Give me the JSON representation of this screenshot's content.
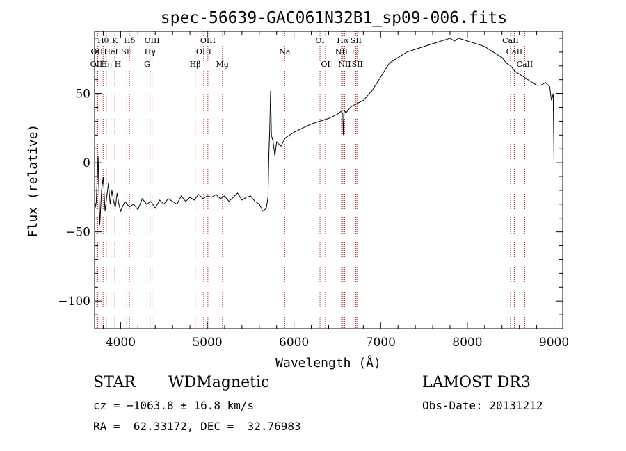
{
  "chart_data": {
    "type": "line",
    "title": "spec-56639-GAC061N32B1_sp09-006.fits",
    "xlabel": "Wavelength (Å)",
    "ylabel": "Flux (relative)",
    "xlim": [
      3700,
      9100
    ],
    "ylim": [
      -120,
      95
    ],
    "xticks": [
      4000,
      5000,
      6000,
      7000,
      8000,
      9000
    ],
    "xtick_labels": [
      "4000",
      "5000",
      "6000",
      "7000",
      "8000",
      "9000"
    ],
    "yticks": [
      -100,
      -50,
      0,
      50
    ],
    "ytick_labels": [
      "−100",
      "−50",
      "0",
      "50"
    ],
    "grid": false,
    "series": [
      {
        "name": "flux",
        "x": [
          3700,
          3720,
          3740,
          3760,
          3780,
          3800,
          3820,
          3840,
          3860,
          3880,
          3900,
          3920,
          3940,
          3960,
          3980,
          4000,
          4050,
          4100,
          4150,
          4200,
          4250,
          4300,
          4350,
          4400,
          4450,
          4500,
          4550,
          4600,
          4650,
          4700,
          4750,
          4800,
          4850,
          4900,
          4950,
          5000,
          5050,
          5100,
          5150,
          5200,
          5250,
          5300,
          5350,
          5400,
          5450,
          5500,
          5550,
          5600,
          5640,
          5680,
          5700,
          5710,
          5720,
          5730,
          5740,
          5760,
          5780,
          5800,
          5850,
          5900,
          6000,
          6100,
          6200,
          6300,
          6400,
          6500,
          6540,
          6563,
          6570,
          6580,
          6600,
          6650,
          6700,
          6800,
          6900,
          7000,
          7100,
          7200,
          7300,
          7400,
          7500,
          7600,
          7700,
          7800,
          7850,
          7900,
          8000,
          8100,
          8200,
          8300,
          8400,
          8450,
          8500,
          8550,
          8600,
          8650,
          8700,
          8750,
          8800,
          8850,
          8900,
          8950,
          8970,
          8990,
          9000
        ],
        "y": [
          -35,
          -28,
          5,
          -45,
          -20,
          -10,
          -35,
          -25,
          -15,
          -30,
          -20,
          -28,
          -32,
          -22,
          -30,
          -35,
          -28,
          -32,
          -30,
          -34,
          -26,
          -30,
          -28,
          -33,
          -27,
          -30,
          -26,
          -28,
          -30,
          -24,
          -28,
          -25,
          -27,
          -23,
          -26,
          -24,
          -25,
          -23,
          -26,
          -24,
          -28,
          -25,
          -22,
          -27,
          -25,
          -24,
          -28,
          -30,
          -35,
          -33,
          -25,
          5,
          25,
          52,
          20,
          15,
          5,
          15,
          12,
          18,
          22,
          25,
          28,
          30,
          32,
          35,
          37,
          36,
          20,
          38,
          36,
          40,
          42,
          45,
          52,
          62,
          72,
          76,
          80,
          82,
          84,
          86,
          88,
          90,
          88,
          90,
          88,
          86,
          84,
          80,
          76,
          72,
          70,
          66,
          64,
          62,
          60,
          58,
          56,
          56,
          58,
          55,
          45,
          50,
          0
        ]
      }
    ],
    "line_markers": [
      {
        "label": "Hθ",
        "wavelength": 3798,
        "tier": 1
      },
      {
        "label": "OII",
        "wavelength": 3727,
        "tier": 2
      },
      {
        "label": "OIII",
        "wavelength": 3737,
        "tier": 3
      },
      {
        "label": "Hη",
        "wavelength": 3835,
        "tier": 3
      },
      {
        "label": "HeI",
        "wavelength": 3889,
        "tier": 2
      },
      {
        "label": "K",
        "wavelength": 3934,
        "tier": 1
      },
      {
        "label": "H",
        "wavelength": 3969,
        "tier": 3
      },
      {
        "label": "SII",
        "wavelength": 4072,
        "tier": 2
      },
      {
        "label": "Hδ",
        "wavelength": 4102,
        "tier": 1
      },
      {
        "label": "OIII",
        "wavelength": 4363,
        "tier": 1
      },
      {
        "label": "Hγ",
        "wavelength": 4340,
        "tier": 2
      },
      {
        "label": "G",
        "wavelength": 4305,
        "tier": 3
      },
      {
        "label": "Hβ",
        "wavelength": 4861,
        "tier": 3
      },
      {
        "label": "OIII",
        "wavelength": 5007,
        "tier": 1
      },
      {
        "label": "OIII",
        "wavelength": 4959,
        "tier": 2
      },
      {
        "label": "Mg",
        "wavelength": 5175,
        "tier": 3
      },
      {
        "label": "Na",
        "wavelength": 5893,
        "tier": 2
      },
      {
        "label": "OI",
        "wavelength": 6300,
        "tier": 1
      },
      {
        "label": "OI",
        "wavelength": 6364,
        "tier": 3
      },
      {
        "label": "Hα",
        "wavelength": 6563,
        "tier": 1
      },
      {
        "label": "NII",
        "wavelength": 6548,
        "tier": 2
      },
      {
        "label": "NII",
        "wavelength": 6584,
        "tier": 3
      },
      {
        "label": "SII",
        "wavelength": 6716,
        "tier": 1
      },
      {
        "label": "Li",
        "wavelength": 6708,
        "tier": 2
      },
      {
        "label": "SII",
        "wavelength": 6731,
        "tier": 3
      },
      {
        "label": "CaII",
        "wavelength": 8498,
        "tier": 1
      },
      {
        "label": "CaII",
        "wavelength": 8542,
        "tier": 2
      },
      {
        "label": "CaII",
        "wavelength": 8662,
        "tier": 3
      }
    ]
  },
  "info": {
    "class": "STAR",
    "subclass": "WDMagnetic",
    "survey": "LAMOST DR3",
    "redshift": "cz = −1063.8 ± 16.8 km/s",
    "obs_date": "Obs-Date: 20131212",
    "coords": "RA =  62.33172, DEC =  32.76983"
  },
  "colors": {
    "spectrum": "#000000",
    "marker_line": "#b22222",
    "axis": "#000000",
    "background": "#ffffff"
  }
}
